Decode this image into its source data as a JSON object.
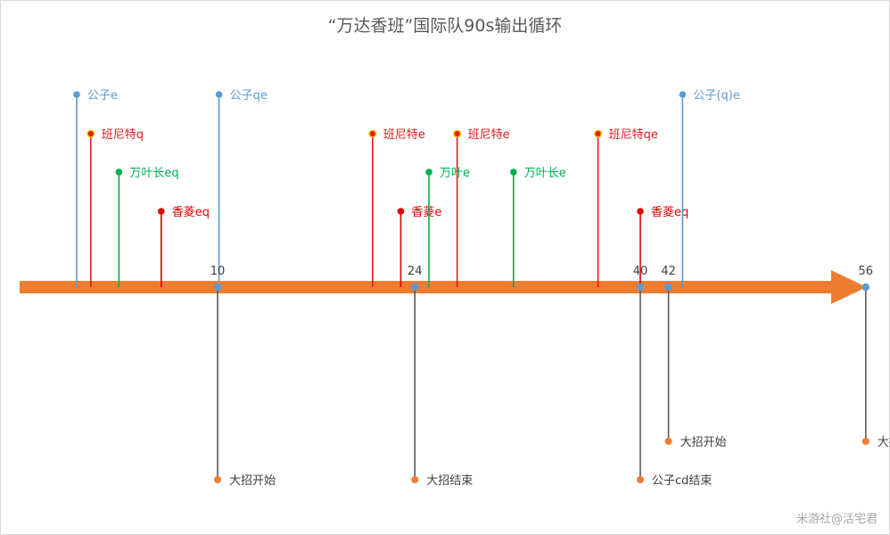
{
  "title": "“万达香班”国际队90s输出循环",
  "watermark": "米游社@活宅君",
  "colors": {
    "arrow": "#ED7D31",
    "gongzi": "#5B9BD5",
    "banni": "#E31A1C",
    "wanye": "#00B050",
    "xiangling": "#E00000",
    "stem_dark": "#595959",
    "dot_blue": "#5B9BD5",
    "dot_orange": "#ED7D31",
    "dot_halo": "#FFC000",
    "label_dark": "#404040"
  },
  "axis_ticks": [
    {
      "label": "10",
      "t": 10
    },
    {
      "label": "24",
      "t": 24
    },
    {
      "label": "40",
      "t": 40
    },
    {
      "label": "42",
      "t": 42
    },
    {
      "label": "56",
      "t": 56
    }
  ],
  "skill_events": [
    {
      "label": "公子e",
      "t": 0,
      "row": 0,
      "char": "gongzi"
    },
    {
      "label": "班尼特q",
      "t": 1,
      "row": 1,
      "char": "banni"
    },
    {
      "label": "万叶长eq",
      "t": 3,
      "row": 2,
      "char": "wanye"
    },
    {
      "label": "香菱eq",
      "t": 6,
      "row": 3,
      "char": "xiangling"
    },
    {
      "label": "公子qe",
      "t": 10.1,
      "row": 0,
      "char": "gongzi"
    },
    {
      "label": "班尼特e",
      "t": 21,
      "row": 1,
      "char": "banni"
    },
    {
      "label": "香菱e",
      "t": 23,
      "row": 3,
      "char": "xiangling"
    },
    {
      "label": "万叶e",
      "t": 25,
      "row": 2,
      "char": "wanye"
    },
    {
      "label": "班尼特e",
      "t": 27,
      "row": 1,
      "char": "banni"
    },
    {
      "label": "万叶长e",
      "t": 31,
      "row": 2,
      "char": "wanye"
    },
    {
      "label": "班尼特qe",
      "t": 37,
      "row": 1,
      "char": "banni"
    },
    {
      "label": "香菱eq",
      "t": 40,
      "row": 3,
      "char": "xiangling"
    },
    {
      "label": "公子(q)e",
      "t": 43,
      "row": 0,
      "char": "gongzi"
    }
  ],
  "milestone_events": [
    {
      "label": "大招开始",
      "t": 10,
      "row": 1
    },
    {
      "label": "大招结束",
      "t": 24,
      "row": 1
    },
    {
      "label": "公子cd结束",
      "t": 40,
      "row": 1
    },
    {
      "label": "大招开始",
      "t": 42,
      "row": 0
    },
    {
      "label": "大招结束",
      "t": 56,
      "row": 0
    }
  ]
}
